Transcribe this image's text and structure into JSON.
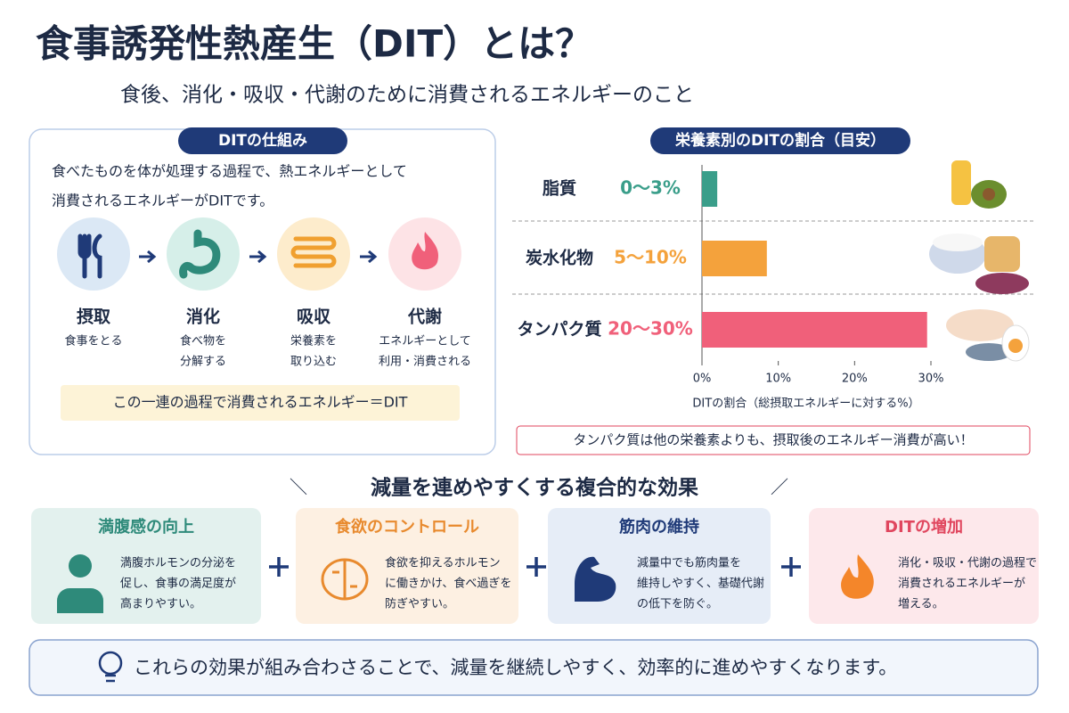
{
  "header": {
    "title": "食事誘発性熱産生（DIT）とは？",
    "subtitle": "食後、消化・吸収・代謝のために消費されるエネルギーのこと"
  },
  "mechanism": {
    "badge": "DITの仕組み",
    "description": [
      "食べたものを体が処理する過程で、熱エネルギーとして",
      "消費されるエネルギーがDITです。"
    ],
    "steps": [
      {
        "name": "摂取",
        "text": [
          "食事をとる"
        ]
      },
      {
        "name": "消化",
        "text": [
          "食べ物を",
          "分解する"
        ]
      },
      {
        "name": "吸収",
        "text": [
          "栄養素を",
          "取り込む"
        ]
      },
      {
        "name": "代謝",
        "text": [
          "エネルギーとして",
          "利用・消費される"
        ]
      }
    ],
    "note": "この一連の過程で消費されるエネルギー＝DIT"
  },
  "chart_data": {
    "type": "bar",
    "orientation": "horizontal",
    "title": "栄養素別のDITの割合（目安）",
    "categories": [
      "脂質",
      "炭水化物",
      "タンパク質"
    ],
    "range_labels": [
      "0～3%",
      "5～10%",
      "20～30%"
    ],
    "series": [
      {
        "values": [
          2,
          8.5,
          29.5
        ],
        "colors": [
          "#3a9e8a",
          "#f4a23c",
          "#f0607a"
        ]
      }
    ],
    "xlim": [
      0,
      30
    ],
    "xticks": [
      {
        "value": 0,
        "label": "0%"
      },
      {
        "value": 10,
        "label": "10%"
      },
      {
        "value": 20,
        "label": "20%"
      },
      {
        "value": 30,
        "label": "30%"
      }
    ],
    "xlabel": "DITの割合（総摂取エネルギーに対する%）",
    "note": "タンパク質は他の栄養素よりも、摂取後のエネルギー消費が高い！"
  },
  "effects": {
    "heading": "減量を連めやすくする複合的な効果",
    "cards": [
      {
        "title": "満腹感の向上",
        "text": [
          "満腹ホルモンの分泌を",
          "促し、食事の満足度が",
          "高まりやすい。"
        ]
      },
      {
        "title": "食欲のコントロール",
        "text": [
          "食欲を抑えるホルモン",
          "に働きかけ、食べ過ぎを",
          "防ぎやすい。"
        ]
      },
      {
        "title": "筋肉の維持",
        "text": [
          "減量中でも筋肉量を",
          "維持しやすく、基礎代謝",
          "の低下を防ぐ。"
        ]
      },
      {
        "title": "DITの増加",
        "text": [
          "消化・吸収・代謝の過程で",
          "消費されるエネルギーが",
          "増える。"
        ]
      }
    ]
  },
  "footer": "これらの効果が組み合わさることで、減量を継続しやすく、効率的に進めやすくなります。"
}
